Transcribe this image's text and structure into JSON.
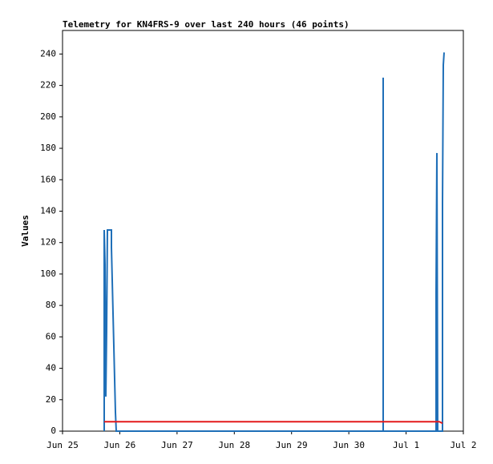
{
  "chart_data": {
    "type": "line",
    "title": "Telemetry for KN4FRS-9 over last 240 hours (46 points)",
    "y_label": "Values",
    "xlim": [
      0,
      7
    ],
    "xticks": [
      {
        "value": 0,
        "label": "Jun 25"
      },
      {
        "value": 1,
        "label": "Jun 26"
      },
      {
        "value": 2,
        "label": "Jun 27"
      },
      {
        "value": 3,
        "label": "Jun 28"
      },
      {
        "value": 4,
        "label": "Jun 29"
      },
      {
        "value": 5,
        "label": "Jun 30"
      },
      {
        "value": 6,
        "label": "Jul 1"
      },
      {
        "value": 7,
        "label": "Jul 2"
      }
    ],
    "ylim": [
      0,
      255
    ],
    "yticks": [
      0,
      20,
      40,
      60,
      80,
      100,
      120,
      140,
      160,
      180,
      200,
      220,
      240
    ],
    "grid": false,
    "series": [
      {
        "color": "#1f6fb8",
        "x": [
          0.728,
          0.728,
          0.742,
          0.756,
          0.77,
          0.784,
          0.854,
          0.854,
          0.868,
          0.882,
          0.896,
          0.91,
          0.924,
          0.938,
          5.6,
          5.6,
          5.6,
          6.524,
          6.524,
          6.538,
          6.552,
          6.636,
          6.636,
          6.65,
          6.664
        ],
        "values": [
          0,
          128,
          106,
          22,
          64,
          128,
          128,
          117,
          96,
          75,
          54,
          33,
          12,
          0,
          0,
          225,
          0,
          0,
          88,
          177,
          0,
          0,
          145,
          233,
          241
        ]
      },
      {
        "color": "#e41a1c",
        "x": [
          0.728,
          6.58,
          6.636
        ],
        "values": [
          6,
          6,
          5
        ]
      }
    ]
  }
}
